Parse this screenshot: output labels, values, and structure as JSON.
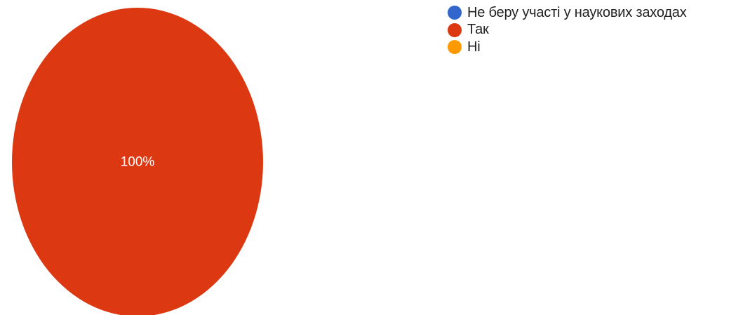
{
  "chart_data": {
    "type": "pie",
    "categories": [
      "Не беру участі у наукових заходах",
      "Так",
      "Ні"
    ],
    "values": [
      0,
      100,
      0
    ],
    "value_labels": [
      "",
      "100%",
      ""
    ],
    "colors": [
      "#3366cc",
      "#dc3912",
      "#ff9900"
    ],
    "title": "",
    "legend": {
      "position": "right"
    }
  }
}
